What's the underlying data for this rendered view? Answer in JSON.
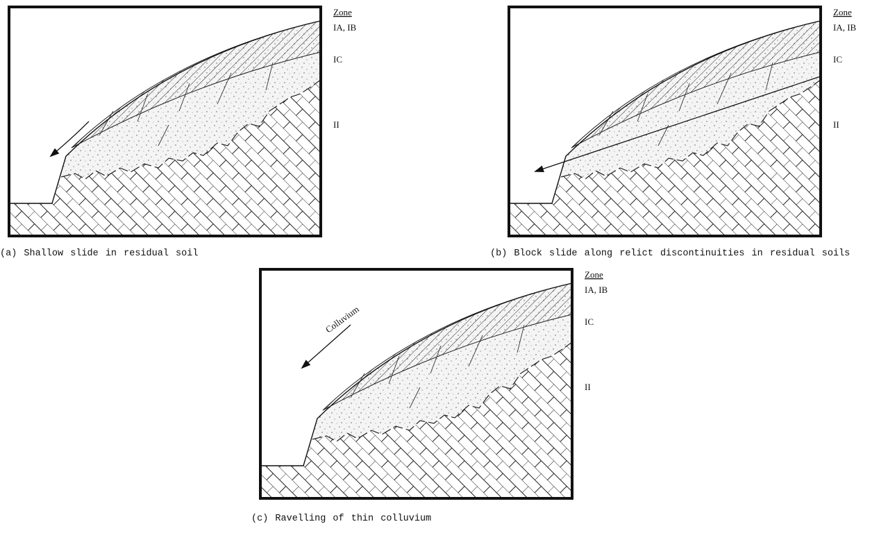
{
  "panels": [
    {
      "caption": "(a)  Shallow slide in residual soil",
      "zone_heading": "Zone",
      "zones": [
        "IA, IB",
        "IC",
        "II"
      ]
    },
    {
      "caption": "(b)  Block slide along relict discontinuities in residual soils",
      "zone_heading": "Zone",
      "zones": [
        "IA, IB",
        "IC",
        "II"
      ]
    },
    {
      "caption": "(c)  Ravelling of thin colluvium",
      "zone_heading": "Zone",
      "zones": [
        "IA, IB",
        "IC",
        "II"
      ],
      "annotation": "Colluvium"
    }
  ]
}
